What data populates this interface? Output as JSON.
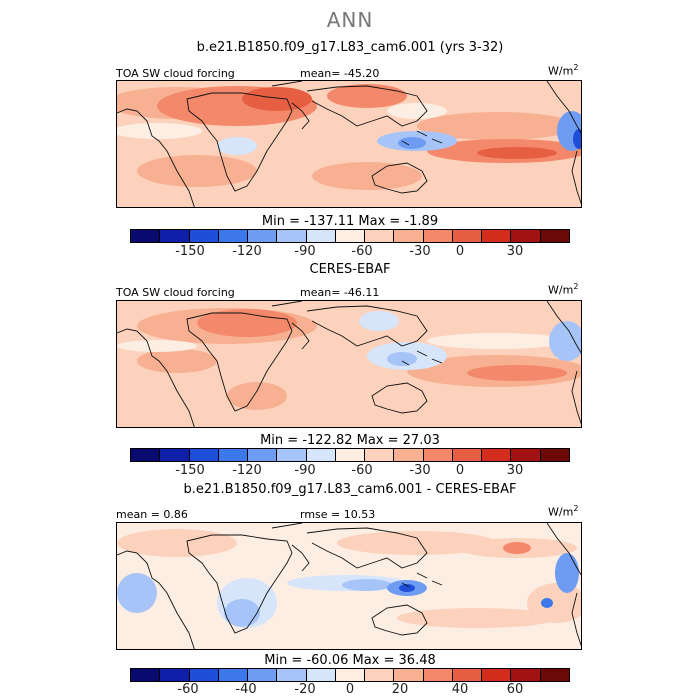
{
  "season": "ANN",
  "colors": {
    "top": [
      "#0a0a6e",
      "#0f1fa8",
      "#1f4fd8",
      "#3c78ea",
      "#6e9cf2",
      "#a6c4f7",
      "#d7e5fb",
      "#fdeee4",
      "#fcd2bc",
      "#f8b092",
      "#f3896a",
      "#e75f43",
      "#d22d1d",
      "#a11313",
      "#6b0808"
    ],
    "diff": [
      "#0a0a6e",
      "#0f1fa8",
      "#1f4fd8",
      "#3c78ea",
      "#6e9cf2",
      "#a6c4f7",
      "#d7e5fb",
      "#fdeee4",
      "#fcd2bc",
      "#f8b092",
      "#f3896a",
      "#e75f43",
      "#d22d1d",
      "#a11313",
      "#6b0808"
    ]
  },
  "panels": [
    {
      "title": "b.e21.B1850.f09_g17.L83_cam6.001 (yrs 3-32)",
      "left_label": "TOA SW cloud forcing",
      "center_label": "mean=  -45.20",
      "units": "W/m",
      "units_exp": "2",
      "min_max": "Min = -137.11  Max =   -1.89",
      "tick_labels": [
        "-150",
        "-120",
        "-90",
        "-60",
        "-30",
        "0",
        "30"
      ]
    },
    {
      "title": "CERES-EBAF",
      "left_label": "TOA SW cloud forcing",
      "center_label": "mean=  -46.11",
      "units": "W/m",
      "units_exp": "2",
      "min_max": "Min = -122.82  Max =  27.03",
      "tick_labels": [
        "-150",
        "-120",
        "-90",
        "-60",
        "-30",
        "0",
        "30"
      ]
    },
    {
      "title": "b.e21.B1850.f09_g17.L83_cam6.001 - CERES-EBAF",
      "left_label": "mean =   0.86",
      "center_label": "rmse =  10.53",
      "units": "W/m",
      "units_exp": "2",
      "min_max": "Min = -60.06  Max =  36.48",
      "tick_labels": [
        "-60",
        "-40",
        "-20",
        "0",
        "20",
        "40",
        "60"
      ]
    }
  ]
}
